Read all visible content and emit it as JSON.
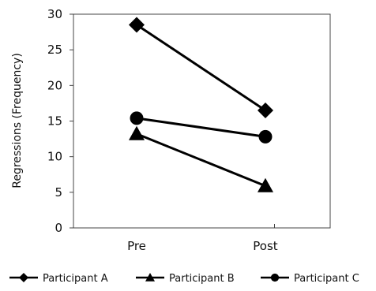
{
  "chart_data": {
    "type": "line",
    "categories": [
      "Pre",
      "Post"
    ],
    "ylabel": "Regressions (Frequency)",
    "ylim": [
      0,
      30
    ],
    "yticks": [
      0,
      5,
      10,
      15,
      20,
      25,
      30
    ],
    "grid": false,
    "legend_position": "bottom",
    "series": [
      {
        "name": "Participant A",
        "marker": "diamond",
        "values": [
          28.5,
          16.5
        ]
      },
      {
        "name": "Participant B",
        "marker": "triangle",
        "values": [
          13.2,
          5.9
        ]
      },
      {
        "name": "Participant C",
        "marker": "circle",
        "values": [
          15.4,
          12.8
        ]
      }
    ],
    "colors": {
      "series": "#000000",
      "axis": "#444444"
    }
  }
}
